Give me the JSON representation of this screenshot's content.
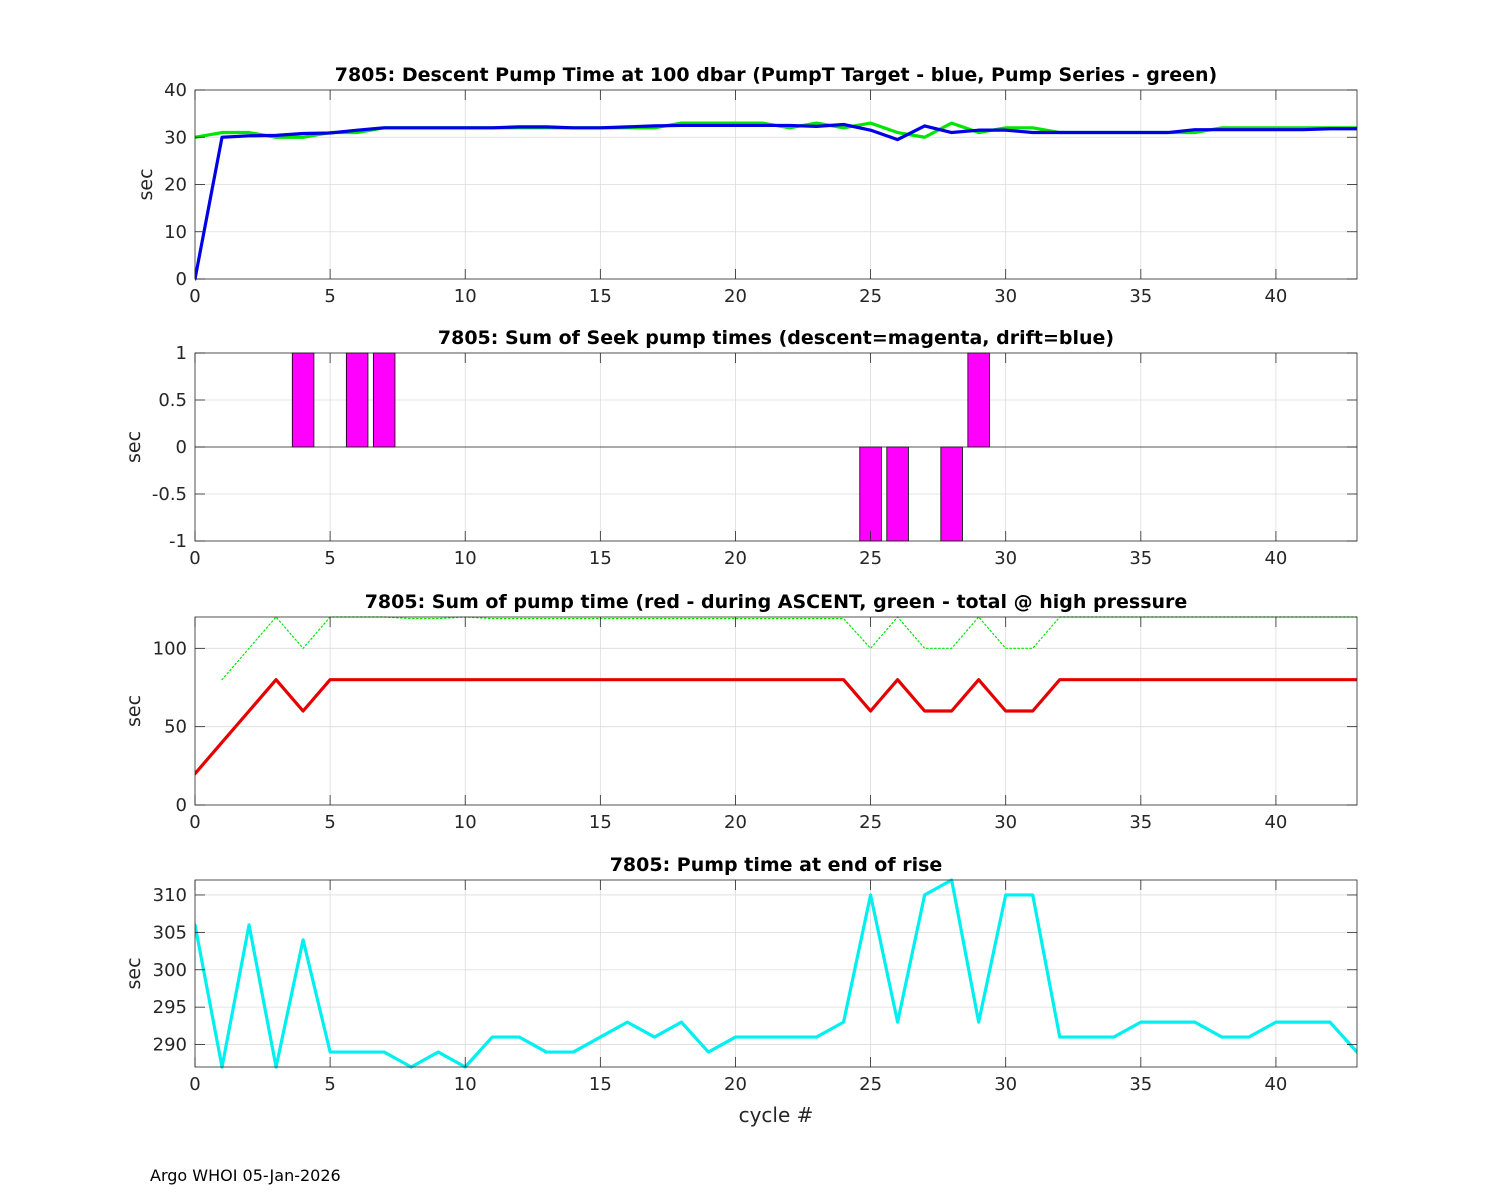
{
  "footer": "Argo WHOI 05-Jan-2026",
  "chart_data": [
    {
      "type": "line",
      "title": "7805: Descent Pump Time at 100 dbar (PumpT Target - blue, Pump Series - green)",
      "xlabel": "",
      "ylabel": "sec",
      "xlim": [
        0,
        43
      ],
      "ylim": [
        0,
        40
      ],
      "xticks": [
        0,
        5,
        10,
        15,
        20,
        25,
        30,
        35,
        40
      ],
      "yticks": [
        0,
        10,
        20,
        30,
        40
      ],
      "yticklabels": [
        "0",
        "10",
        "20",
        "30",
        "40"
      ],
      "grid": true,
      "series": [
        {
          "name": "Pump Series",
          "color": "#00e600",
          "style": "solid",
          "x": [
            0,
            1,
            2,
            3,
            4,
            5,
            6,
            7,
            8,
            9,
            10,
            11,
            12,
            13,
            14,
            15,
            16,
            17,
            18,
            19,
            20,
            21,
            22,
            23,
            24,
            25,
            26,
            27,
            28,
            29,
            30,
            31,
            32,
            33,
            34,
            35,
            36,
            37,
            38,
            39,
            40,
            41,
            42,
            43
          ],
          "y": [
            30,
            31,
            31,
            30,
            30,
            31,
            31,
            32,
            32,
            32,
            32,
            32,
            32,
            32,
            32,
            32,
            32,
            32,
            33,
            33,
            33,
            33,
            32,
            33,
            32,
            33,
            31,
            30,
            33,
            31,
            32,
            32,
            31,
            31,
            31,
            31,
            31,
            31,
            32,
            32,
            32,
            32,
            32,
            32
          ]
        },
        {
          "name": "PumpT Target",
          "color": "#0000e6",
          "style": "solid",
          "x": [
            0,
            1,
            2,
            3,
            4,
            5,
            6,
            7,
            8,
            9,
            10,
            11,
            12,
            13,
            14,
            15,
            16,
            17,
            18,
            19,
            20,
            21,
            22,
            23,
            24,
            25,
            26,
            27,
            28,
            29,
            30,
            31,
            32,
            33,
            34,
            35,
            36,
            37,
            38,
            39,
            40,
            41,
            42,
            43
          ],
          "y": [
            0,
            30,
            30.3,
            30.4,
            30.8,
            30.9,
            31.5,
            32,
            32,
            32,
            32,
            32,
            32.2,
            32.2,
            32,
            32,
            32.2,
            32.4,
            32.5,
            32.5,
            32.5,
            32.5,
            32.5,
            32.3,
            32.7,
            31.5,
            29.5,
            32.4,
            31,
            31.5,
            31.5,
            31,
            31,
            31,
            31,
            31,
            31,
            31.6,
            31.6,
            31.6,
            31.6,
            31.6,
            31.8,
            31.8
          ]
        }
      ]
    },
    {
      "type": "bar",
      "title": "7805: Sum of Seek pump times (descent=magenta, drift=blue)",
      "xlabel": "",
      "ylabel": "sec",
      "xlim": [
        0,
        43
      ],
      "ylim": [
        -1,
        1
      ],
      "xticks": [
        0,
        5,
        10,
        15,
        20,
        25,
        30,
        35,
        40
      ],
      "yticks": [
        -1,
        -0.5,
        0,
        0.5,
        1
      ],
      "yticklabels": [
        "-1",
        "-0.5",
        "0",
        "0.5",
        "1"
      ],
      "grid": true,
      "bar_width": 0.8,
      "series": [
        {
          "name": "descent",
          "color": "#ff00ff",
          "x": [
            4,
            6,
            7,
            25,
            26,
            28,
            29
          ],
          "y": [
            1,
            1,
            1,
            -1,
            -1,
            -1,
            1
          ]
        }
      ]
    },
    {
      "type": "line",
      "title": "7805: Sum of pump time (red - during ASCENT, green - total @ high pressure",
      "xlabel": "",
      "ylabel": "sec",
      "xlim": [
        0,
        43
      ],
      "ylim": [
        0,
        120
      ],
      "xticks": [
        0,
        5,
        10,
        15,
        20,
        25,
        30,
        35,
        40
      ],
      "yticks": [
        0,
        50,
        100
      ],
      "yticklabels": [
        "0",
        "50",
        "100"
      ],
      "grid": true,
      "series": [
        {
          "name": "total @ high pressure",
          "color": "#00e600",
          "style": "dotted",
          "x": [
            1,
            2,
            3,
            4,
            5,
            6,
            7,
            8,
            9,
            10,
            11,
            12,
            13,
            14,
            15,
            16,
            17,
            18,
            19,
            20,
            21,
            22,
            23,
            24,
            25,
            26,
            27,
            28,
            29,
            30,
            31,
            32,
            33,
            34,
            35,
            36,
            37,
            38,
            39,
            40,
            41,
            42,
            43
          ],
          "y": [
            80,
            100,
            120,
            100,
            120,
            120,
            120,
            119,
            119,
            120,
            119,
            119,
            119,
            119,
            119,
            119,
            119,
            119,
            119,
            119,
            119,
            119,
            119,
            119,
            100,
            120,
            100,
            100,
            120,
            100,
            100,
            120,
            120,
            120,
            120,
            120,
            120,
            120,
            120,
            120,
            120,
            120,
            120
          ]
        },
        {
          "name": "during ASCENT",
          "color": "#e60000",
          "style": "solid",
          "x": [
            0,
            1,
            2,
            3,
            4,
            5,
            6,
            7,
            8,
            9,
            10,
            11,
            12,
            13,
            14,
            15,
            16,
            17,
            18,
            19,
            20,
            21,
            22,
            23,
            24,
            25,
            26,
            27,
            28,
            29,
            30,
            31,
            32,
            33,
            34,
            35,
            36,
            37,
            38,
            39,
            40,
            41,
            42,
            43
          ],
          "y": [
            20,
            40,
            60,
            80,
            60,
            80,
            80,
            80,
            80,
            80,
            80,
            80,
            80,
            80,
            80,
            80,
            80,
            80,
            80,
            80,
            80,
            80,
            80,
            80,
            80,
            60,
            80,
            60,
            60,
            80,
            60,
            60,
            80,
            80,
            80,
            80,
            80,
            80,
            80,
            80,
            80,
            80,
            80,
            80
          ]
        }
      ]
    },
    {
      "type": "line",
      "title": "7805: Pump time at end of rise",
      "xlabel": "cycle #",
      "ylabel": "sec",
      "xlim": [
        0,
        43
      ],
      "ylim": [
        287,
        312
      ],
      "xticks": [
        0,
        5,
        10,
        15,
        20,
        25,
        30,
        35,
        40
      ],
      "yticks": [
        290,
        295,
        300,
        305,
        310
      ],
      "yticklabels": [
        "290",
        "295",
        "300",
        "305",
        "310"
      ],
      "grid": true,
      "series": [
        {
          "name": "end of rise",
          "color": "#00f0f0",
          "style": "solid",
          "x": [
            0,
            1,
            2,
            3,
            4,
            5,
            6,
            7,
            8,
            9,
            10,
            11,
            12,
            13,
            14,
            15,
            16,
            17,
            18,
            19,
            20,
            21,
            22,
            23,
            24,
            25,
            26,
            27,
            28,
            29,
            30,
            31,
            32,
            33,
            34,
            35,
            36,
            37,
            38,
            39,
            40,
            41,
            42,
            43
          ],
          "y": [
            306,
            287,
            306,
            287,
            304,
            289,
            289,
            289,
            287,
            289,
            287,
            291,
            291,
            289,
            289,
            291,
            293,
            291,
            293,
            289,
            291,
            291,
            291,
            291,
            293,
            310,
            293,
            310,
            312,
            293,
            310,
            310,
            291,
            291,
            291,
            293,
            293,
            293,
            291,
            291,
            293,
            293,
            293,
            289
          ]
        }
      ]
    }
  ]
}
